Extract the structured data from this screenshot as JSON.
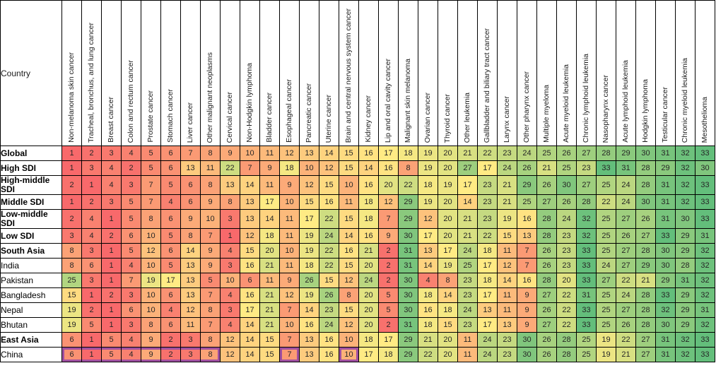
{
  "chart_data": {
    "type": "heatmap",
    "corner_label": "Country",
    "value_range": [
      1,
      33
    ],
    "color_scale": {
      "min_value": 1,
      "min_color": "#F8696B",
      "mid_value": 17,
      "mid_color": "#FFEB84",
      "max_value": 33,
      "max_color": "#63BE7B"
    },
    "highlight_color": "#A050A0",
    "columns": [
      "Non-melanoma skin cancer",
      "Tracheal, bronchus, and lung cancer",
      "Breast cancer",
      "Colon and rectum cancer",
      "Prostate cancer",
      "Stomach cancer",
      "Liver cancer",
      "Other malignant neoplasms",
      "Cervical cancer",
      "Non-Hodgkin lymphoma",
      "Bladder cancer",
      "Esophageal cancer",
      "Pancreatic cancer",
      "Uterine cancer",
      "Brain and central nervous system cancer",
      "Kidney cancer",
      "Lip and oral cavity cancer",
      "Malignant skin melanoma",
      "Ovarian cancer",
      "Thyroid cancer",
      "Other leukemia",
      "Gallbladder and biliary tract cancer",
      "Larynx cancer",
      "Other pharynx cancer",
      "Multiple myeloma",
      "Acute myeloid leukemia",
      "Chronic lymphoid leukemia",
      "Nasopharynx cancer",
      "Acute lymphoid leukemia",
      "Hodgkin lymphoma",
      "Testicular cancer",
      "Chronic myeloid leukemia",
      "Mesothelioma"
    ],
    "rows": [
      {
        "label": "Global",
        "bold": true,
        "values": [
          1,
          2,
          3,
          4,
          5,
          6,
          7,
          8,
          9,
          10,
          11,
          12,
          13,
          14,
          15,
          16,
          17,
          18,
          19,
          20,
          21,
          22,
          23,
          24,
          25,
          26,
          27,
          28,
          29,
          30,
          31,
          32,
          33
        ]
      },
      {
        "label": "High SDI",
        "bold": true,
        "values": [
          1,
          3,
          4,
          2,
          5,
          6,
          13,
          11,
          22,
          7,
          9,
          18,
          10,
          12,
          15,
          14,
          16,
          8,
          19,
          20,
          27,
          17,
          24,
          26,
          21,
          25,
          23,
          33,
          31,
          28,
          29,
          32,
          30
        ]
      },
      {
        "label": "High-middle SDI",
        "bold": true,
        "values": [
          2,
          1,
          4,
          3,
          7,
          5,
          6,
          8,
          13,
          14,
          11,
          9,
          12,
          15,
          10,
          16,
          20,
          22,
          18,
          19,
          17,
          23,
          21,
          29,
          26,
          30,
          27,
          25,
          24,
          28,
          31,
          32,
          33
        ]
      },
      {
        "label": "Middle SDI",
        "bold": true,
        "values": [
          1,
          2,
          3,
          5,
          7,
          4,
          6,
          9,
          8,
          13,
          17,
          10,
          15,
          16,
          11,
          18,
          12,
          29,
          19,
          20,
          14,
          23,
          21,
          25,
          27,
          26,
          28,
          22,
          24,
          30,
          31,
          32,
          33
        ]
      },
      {
        "label": "Low-middle SDI",
        "bold": true,
        "values": [
          2,
          4,
          1,
          5,
          8,
          6,
          9,
          10,
          3,
          13,
          14,
          11,
          17,
          22,
          15,
          18,
          7,
          29,
          12,
          20,
          21,
          23,
          19,
          16,
          28,
          24,
          32,
          25,
          27,
          26,
          31,
          30,
          33
        ]
      },
      {
        "label": "Low SDI",
        "bold": true,
        "values": [
          3,
          4,
          2,
          6,
          10,
          5,
          8,
          7,
          1,
          12,
          18,
          11,
          19,
          24,
          14,
          16,
          9,
          30,
          17,
          20,
          21,
          22,
          15,
          13,
          28,
          23,
          32,
          25,
          26,
          27,
          33,
          29,
          31
        ]
      },
      {
        "label": "South Asia",
        "bold": true,
        "values": [
          8,
          3,
          1,
          5,
          12,
          6,
          14,
          9,
          4,
          15,
          20,
          10,
          19,
          22,
          16,
          21,
          2,
          31,
          13,
          17,
          24,
          18,
          11,
          7,
          26,
          23,
          33,
          25,
          27,
          28,
          30,
          29,
          32
        ]
      },
      {
        "label": "India",
        "bold": false,
        "values": [
          8,
          6,
          1,
          4,
          10,
          5,
          13,
          9,
          3,
          16,
          21,
          11,
          18,
          22,
          15,
          20,
          2,
          31,
          14,
          19,
          25,
          17,
          12,
          7,
          26,
          23,
          33,
          24,
          27,
          29,
          30,
          28,
          32
        ]
      },
      {
        "label": "Pakistan",
        "bold": false,
        "values": [
          25,
          3,
          1,
          7,
          19,
          17,
          13,
          5,
          10,
          6,
          11,
          9,
          26,
          15,
          12,
          24,
          2,
          30,
          4,
          8,
          23,
          18,
          14,
          16,
          28,
          20,
          33,
          27,
          22,
          21,
          29,
          31,
          32
        ]
      },
      {
        "label": "Bangladesh",
        "bold": false,
        "values": [
          15,
          1,
          2,
          3,
          10,
          6,
          13,
          7,
          4,
          16,
          21,
          12,
          19,
          26,
          8,
          20,
          5,
          30,
          18,
          14,
          23,
          17,
          11,
          9,
          27,
          22,
          31,
          25,
          24,
          28,
          33,
          29,
          32
        ]
      },
      {
        "label": "Nepal",
        "bold": false,
        "values": [
          19,
          2,
          1,
          6,
          10,
          4,
          12,
          8,
          3,
          17,
          21,
          7,
          14,
          23,
          15,
          20,
          5,
          30,
          16,
          18,
          24,
          13,
          11,
          9,
          26,
          22,
          33,
          25,
          27,
          28,
          32,
          29,
          31
        ]
      },
      {
        "label": "Bhutan",
        "bold": false,
        "values": [
          19,
          5,
          1,
          3,
          8,
          6,
          11,
          7,
          4,
          14,
          21,
          10,
          16,
          24,
          12,
          20,
          2,
          31,
          18,
          15,
          23,
          17,
          13,
          9,
          27,
          22,
          33,
          25,
          26,
          28,
          30,
          29,
          32
        ]
      },
      {
        "label": "East Asia",
        "bold": true,
        "values": [
          6,
          1,
          5,
          4,
          9,
          2,
          3,
          8,
          12,
          14,
          15,
          7,
          13,
          16,
          10,
          18,
          17,
          29,
          21,
          20,
          11,
          24,
          23,
          30,
          26,
          28,
          25,
          19,
          22,
          27,
          31,
          32,
          33
        ]
      },
      {
        "label": "China",
        "bold": false,
        "values": [
          6,
          1,
          5,
          4,
          9,
          2,
          3,
          8,
          12,
          14,
          15,
          7,
          13,
          16,
          10,
          17,
          18,
          29,
          22,
          20,
          11,
          24,
          23,
          30,
          26,
          28,
          25,
          19,
          21,
          27,
          31,
          32,
          33
        ]
      }
    ],
    "highlights": [
      {
        "row_label": "China",
        "row_index": 13,
        "col_start": 0,
        "col_end": 7,
        "columns": "Non-melanoma skin cancer through Other malignant neoplasms"
      },
      {
        "row_label": "China",
        "row_index": 13,
        "col_start": 11,
        "col_end": 11,
        "columns": "Esophageal cancer"
      },
      {
        "row_label": "China",
        "row_index": 13,
        "col_start": 14,
        "col_end": 14,
        "columns": "Brain and central nervous system cancer"
      }
    ]
  }
}
